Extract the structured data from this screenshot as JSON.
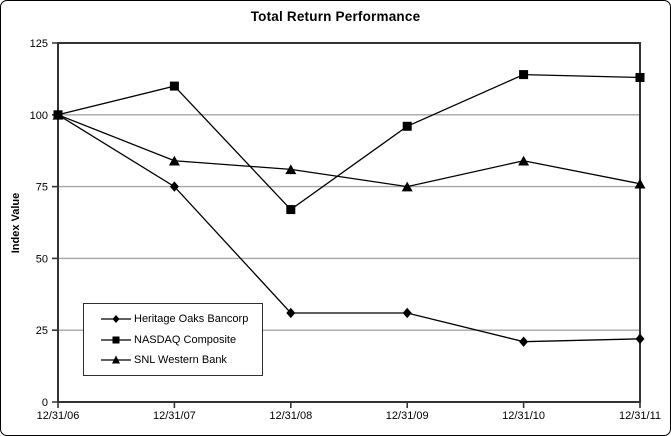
{
  "window": {
    "background": "#ffffff",
    "border_color": "#000000"
  },
  "chart_data": {
    "type": "line",
    "title": "Total Return Performance",
    "ylabel": "Index Value",
    "xlabel": "",
    "categories": [
      "12/31/06",
      "12/31/07",
      "12/31/08",
      "12/31/09",
      "12/31/10",
      "12/31/11"
    ],
    "series": [
      {
        "name": "Heritage Oaks Bancorp",
        "marker": "diamond",
        "values": [
          100,
          75,
          31,
          31,
          21,
          22
        ]
      },
      {
        "name": "NASDAQ Composite",
        "marker": "square",
        "values": [
          100,
          110,
          67,
          96,
          114,
          113
        ]
      },
      {
        "name": "SNL Western Bank",
        "marker": "triangle",
        "values": [
          100,
          84,
          81,
          75,
          84,
          76
        ]
      }
    ],
    "ylim": [
      0,
      125
    ],
    "yticks": [
      0,
      25,
      50,
      75,
      100,
      125
    ],
    "grid": true,
    "legend_position": "inside-bottom-left",
    "colors": {
      "series": "#000000",
      "grid": "#a6a6a6",
      "axis": "#333333",
      "text": "#000000"
    }
  }
}
